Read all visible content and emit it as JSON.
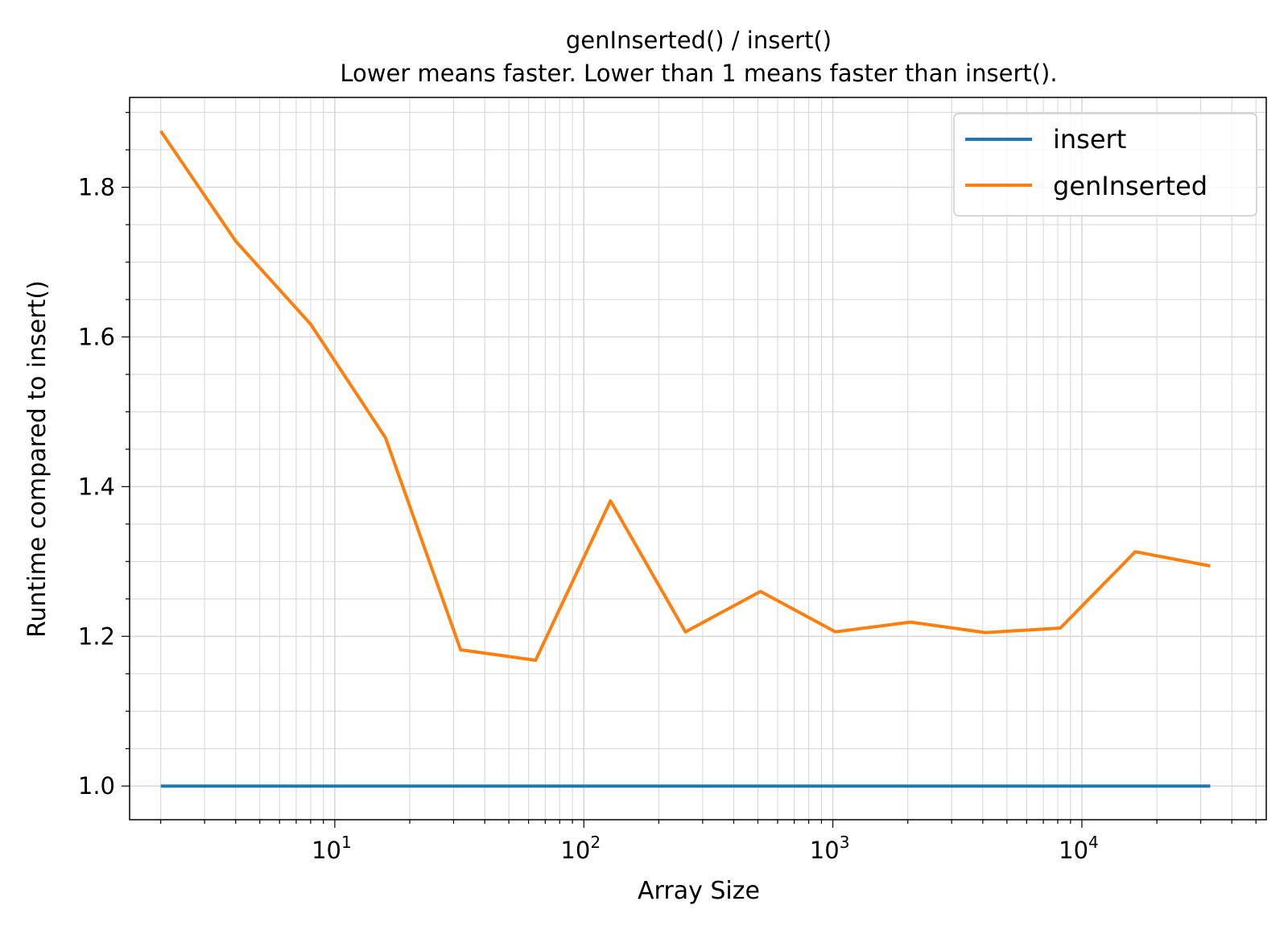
{
  "chart_data": {
    "type": "line",
    "title": "genInserted() / insert()",
    "subtitle": "Lower means faster. Lower than 1 means faster than insert().",
    "xlabel": "Array Size",
    "ylabel": "Runtime compared to insert()",
    "xscale": "log",
    "xlim": [
      1.5,
      55000
    ],
    "ylim": [
      0.955,
      1.92
    ],
    "x": [
      2,
      4,
      8,
      16,
      32,
      64,
      128,
      256,
      512,
      1024,
      2048,
      4096,
      8192,
      16384,
      32768
    ],
    "x_ticks": [
      {
        "value": 10,
        "base": "10",
        "exp": "1"
      },
      {
        "value": 100,
        "base": "10",
        "exp": "2"
      },
      {
        "value": 1000,
        "base": "10",
        "exp": "3"
      },
      {
        "value": 10000,
        "base": "10",
        "exp": "4"
      }
    ],
    "y_ticks": [
      {
        "value": 1.0,
        "label": "1.0"
      },
      {
        "value": 1.2,
        "label": "1.2"
      },
      {
        "value": 1.4,
        "label": "1.4"
      },
      {
        "value": 1.6,
        "label": "1.6"
      },
      {
        "value": 1.8,
        "label": "1.8"
      }
    ],
    "y_minor_step": 0.05,
    "grid": true,
    "legend_position": "top-right",
    "series": [
      {
        "name": "insert",
        "color": "#1f77b4",
        "values": [
          1,
          1,
          1,
          1,
          1,
          1,
          1,
          1,
          1,
          1,
          1,
          1,
          1,
          1,
          1
        ]
      },
      {
        "name": "genInserted",
        "color": "#ff7f0e",
        "values": [
          1.875,
          1.728,
          1.617,
          1.465,
          1.182,
          1.168,
          1.381,
          1.206,
          1.26,
          1.206,
          1.219,
          1.205,
          1.211,
          1.313,
          1.294
        ]
      }
    ]
  }
}
